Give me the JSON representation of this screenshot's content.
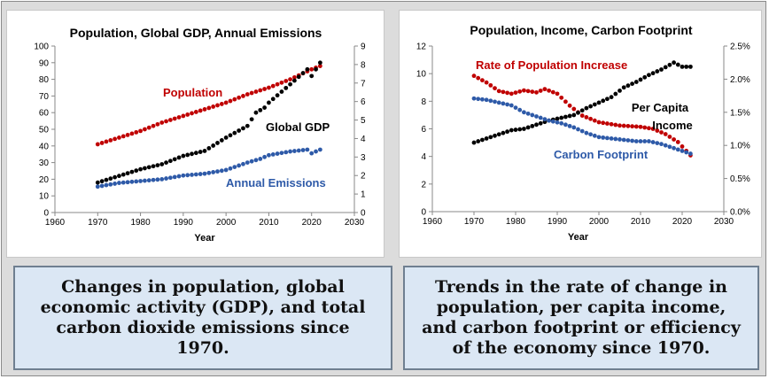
{
  "chart_data": [
    {
      "type": "scatter",
      "title": "Population, Global GDP, Annual Emissions",
      "xlabel": "Year",
      "xlim": [
        1960,
        2030
      ],
      "xticks": [
        1960,
        1970,
        1980,
        1990,
        2000,
        2010,
        2020,
        2030
      ],
      "ylim_left": [
        0,
        100
      ],
      "yticks_left": [
        0,
        10,
        20,
        30,
        40,
        50,
        60,
        70,
        80,
        90,
        100
      ],
      "ylim_right": [
        0,
        9
      ],
      "yticks_right": [
        0,
        1,
        2,
        3,
        4,
        5,
        6,
        7,
        8,
        9
      ],
      "grid": false,
      "legend": "inline labels",
      "series": [
        {
          "name": "Population",
          "color": "#c00000",
          "axis": "left",
          "x": [
            1970,
            1975,
            1980,
            1985,
            1990,
            1995,
            2000,
            2005,
            2010,
            2015,
            2020,
            2022
          ],
          "y": [
            41,
            45,
            49,
            54,
            58,
            62,
            66,
            71,
            75,
            80,
            86,
            88
          ]
        },
        {
          "name": "Global GDP",
          "color": "#000000",
          "axis": "left",
          "x": [
            1970,
            1975,
            1980,
            1985,
            1990,
            1995,
            2000,
            2005,
            2007,
            2009,
            2010,
            2015,
            2019,
            2020,
            2022
          ],
          "y": [
            18,
            22,
            26,
            29,
            34,
            37,
            45,
            52,
            60,
            63,
            66,
            77,
            86,
            82,
            90
          ]
        },
        {
          "name": "Annual Emissions",
          "color": "#2e5aa8",
          "axis": "right",
          "x": [
            1970,
            1975,
            1980,
            1985,
            1990,
            1995,
            2000,
            2005,
            2008,
            2010,
            2015,
            2019,
            2020,
            2022
          ],
          "y": [
            1.4,
            1.6,
            1.7,
            1.8,
            2.0,
            2.1,
            2.3,
            2.7,
            2.9,
            3.1,
            3.3,
            3.4,
            3.2,
            3.4
          ]
        }
      ]
    },
    {
      "type": "scatter",
      "title": "Population, Income, Carbon Footprint",
      "xlabel": "Year",
      "xlim": [
        1960,
        2030
      ],
      "xticks": [
        1960,
        1970,
        1980,
        1990,
        2000,
        2010,
        2020,
        2030
      ],
      "ylim_left": [
        0,
        12
      ],
      "yticks_left": [
        0,
        2,
        4,
        6,
        8,
        10,
        12
      ],
      "ylim_right": [
        0,
        2.5
      ],
      "yticks_right": [
        "0.0%",
        "0.5%",
        "1.0%",
        "1.5%",
        "2.0%",
        "2.5%"
      ],
      "grid": false,
      "legend": "inline labels",
      "series": [
        {
          "name": "Rate of Population Increase",
          "color": "#c00000",
          "axis": "right",
          "x": [
            1970,
            1973,
            1976,
            1979,
            1982,
            1985,
            1987,
            1990,
            1993,
            1996,
            2000,
            2005,
            2010,
            2013,
            2016,
            2019,
            2022
          ],
          "y": [
            2.05,
            1.95,
            1.82,
            1.78,
            1.83,
            1.8,
            1.85,
            1.78,
            1.6,
            1.45,
            1.35,
            1.3,
            1.28,
            1.25,
            1.17,
            1.05,
            0.85
          ]
        },
        {
          "name": "Per Capita Income",
          "color": "#000000",
          "axis": "left",
          "x": [
            1970,
            1973,
            1976,
            1979,
            1982,
            1985,
            1988,
            1991,
            1994,
            1997,
            2000,
            2003,
            2006,
            2009,
            2012,
            2015,
            2018,
            2020,
            2022
          ],
          "y": [
            5.0,
            5.3,
            5.6,
            5.9,
            6.0,
            6.3,
            6.6,
            6.8,
            7.0,
            7.5,
            7.9,
            8.3,
            9.0,
            9.4,
            9.9,
            10.3,
            10.8,
            10.5,
            10.5
          ]
        },
        {
          "name": "Carbon Footprint",
          "color": "#2e5aa8",
          "axis": "left",
          "x": [
            1970,
            1973,
            1976,
            1979,
            1982,
            1985,
            1988,
            1991,
            1994,
            1997,
            2000,
            2003,
            2006,
            2009,
            2012,
            2015,
            2018,
            2020,
            2022
          ],
          "y": [
            8.2,
            8.1,
            7.9,
            7.7,
            7.2,
            6.9,
            6.6,
            6.4,
            6.1,
            5.7,
            5.4,
            5.3,
            5.2,
            5.1,
            5.1,
            4.9,
            4.6,
            4.4,
            4.2
          ]
        }
      ]
    }
  ],
  "captions": {
    "left": "Changes in population, global economic activity (GDP), and total carbon dioxide emissions since 1970.",
    "right": "Trends in the rate of change in population, per capita income, and carbon footprint or efficiency of the economy since 1970."
  }
}
